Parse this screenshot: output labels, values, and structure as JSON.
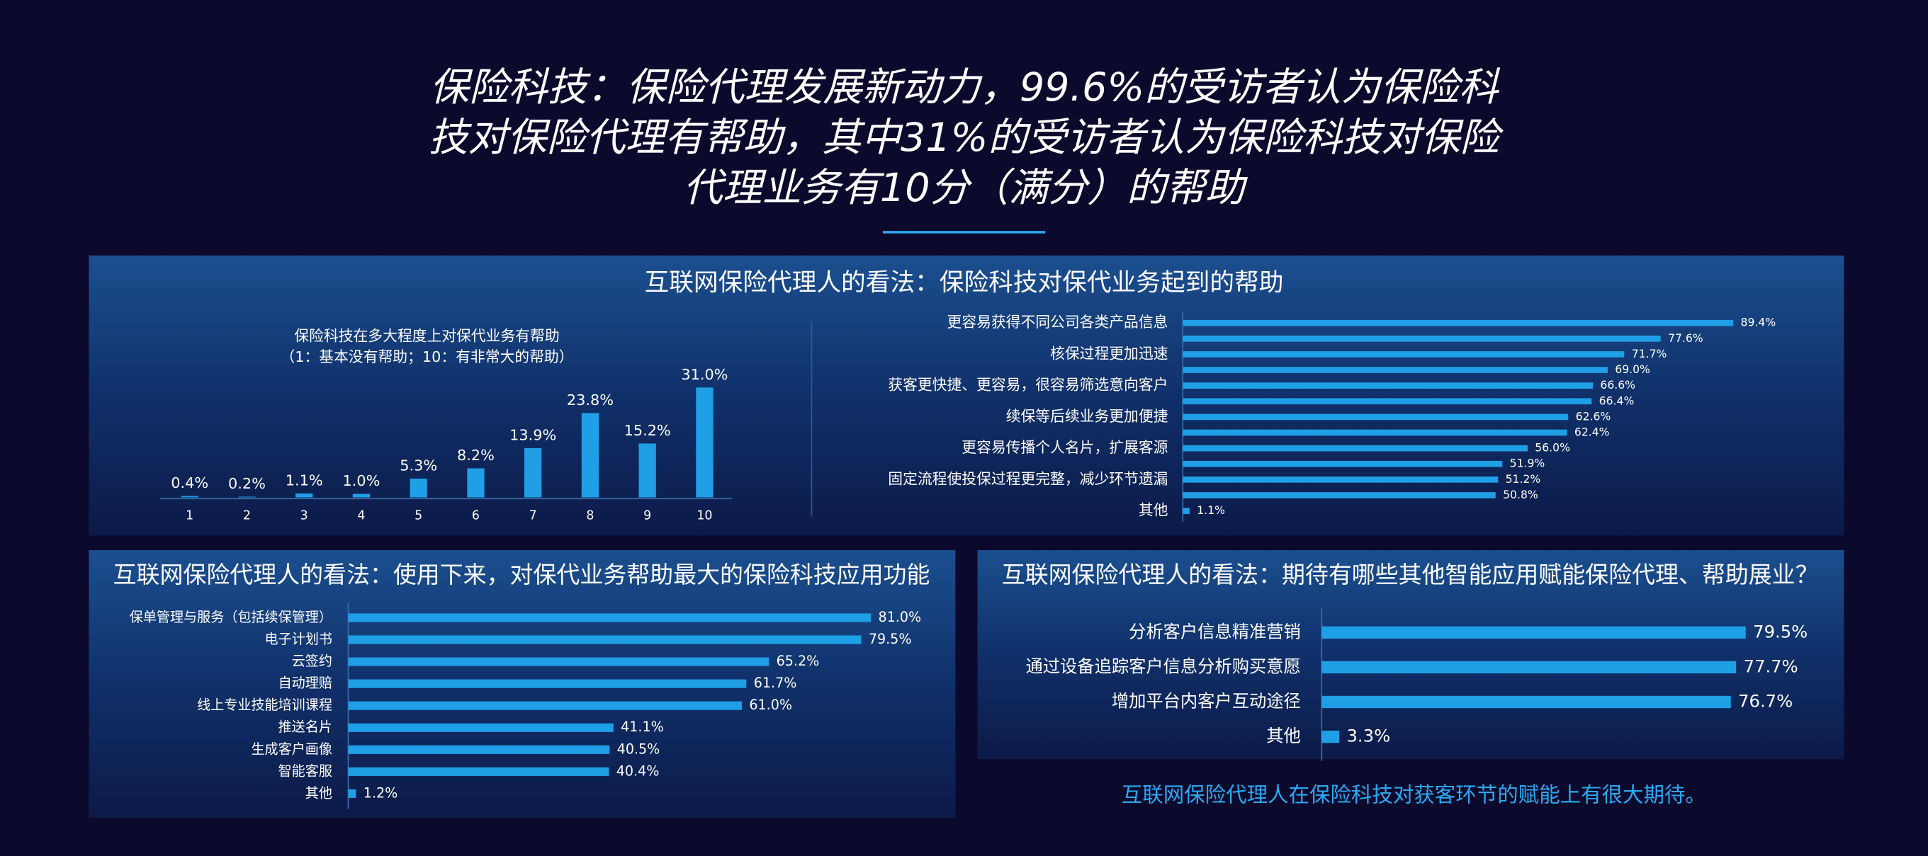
{
  "title": [
    "保险科技：保险代理发展新动力，99.6%的受访者认为保险科",
    "技对保险代理有帮助，其中31%的受访者认为保险科技对保险",
    "代理业务有10分（满分）的帮助"
  ],
  "chart_data": [
    {
      "type": "bar",
      "panel_title": "互联网保险代理人的看法：保险科技对保代业务起到的帮助",
      "title": "保险科技在多大程度上对保代业务有帮助",
      "subtitle": "（1：基本没有帮助；10：有非常大的帮助）",
      "categories": [
        "1",
        "2",
        "3",
        "4",
        "5",
        "6",
        "7",
        "8",
        "9",
        "10"
      ],
      "values": [
        0.4,
        0.2,
        1.1,
        1.0,
        5.3,
        8.2,
        13.9,
        23.8,
        15.2,
        31.0
      ],
      "value_labels": [
        "0.4%",
        "0.2%",
        "1.1%",
        "1.0%",
        "5.3%",
        "8.2%",
        "13.9%",
        "23.8%",
        "15.2%",
        "31.0%"
      ],
      "color": "#1e9fe6",
      "ylim": [
        0,
        35
      ]
    },
    {
      "type": "hbar",
      "categories": [
        "更容易获得不同公司各类产品信息",
        null,
        "核保过程更加迅速",
        null,
        "获客更快捷、更容易，很容易筛选意向客户",
        null,
        "续保等后续业务更加便捷",
        null,
        "更容易传播个人名片，扩展客源",
        null,
        "固定流程使投保过程更完整，减少环节遗漏",
        null,
        "其他"
      ],
      "values": [
        89.4,
        77.6,
        71.7,
        69.0,
        66.6,
        66.4,
        62.6,
        62.4,
        56.0,
        51.9,
        51.2,
        50.8,
        1.1
      ],
      "value_labels": [
        "89.4%",
        "77.6%",
        "71.7%",
        "69.0%",
        "66.6%",
        "66.4%",
        "62.6%",
        "62.4%",
        "56.0%",
        "51.9%",
        "51.2%",
        "50.8%",
        "1.1%"
      ],
      "color": "#1e9fe6",
      "xlim": [
        0,
        100
      ]
    },
    {
      "type": "hbar",
      "panel_title": "互联网保险代理人的看法：使用下来，对保代业务帮助最大的保险科技应用功能",
      "categories": [
        "保单管理与服务（包括续保管理）",
        "电子计划书",
        "云签约",
        "自动理赔",
        "线上专业技能培训课程",
        "推送名片",
        "生成客户画像",
        "智能客服",
        "其他"
      ],
      "values": [
        81.0,
        79.5,
        65.2,
        61.7,
        61.0,
        41.1,
        40.5,
        40.4,
        1.2
      ],
      "value_labels": [
        "81.0%",
        "79.5%",
        "65.2%",
        "61.7%",
        "61.0%",
        "41.1%",
        "40.5%",
        "40.4%",
        "1.2%"
      ],
      "color": "#1e9fe6",
      "xlim": [
        0,
        100
      ]
    },
    {
      "type": "hbar",
      "panel_title": "互联网保险代理人的看法：期待有哪些其他智能应用赋能保险代理、帮助展业？",
      "categories": [
        "分析客户信息精准营销",
        "通过设备追踪客户信息分析购买意愿",
        "增加平台内客户互动途径",
        "其他"
      ],
      "values": [
        79.5,
        77.7,
        76.7,
        3.3
      ],
      "value_labels": [
        "79.5%",
        "77.7%",
        "76.7%",
        "3.3%"
      ],
      "color": "#1e9fe6",
      "xlim": [
        0,
        100
      ]
    }
  ],
  "note": "互联网保险代理人在保险科技对获客环节的赋能上有很大期待。"
}
